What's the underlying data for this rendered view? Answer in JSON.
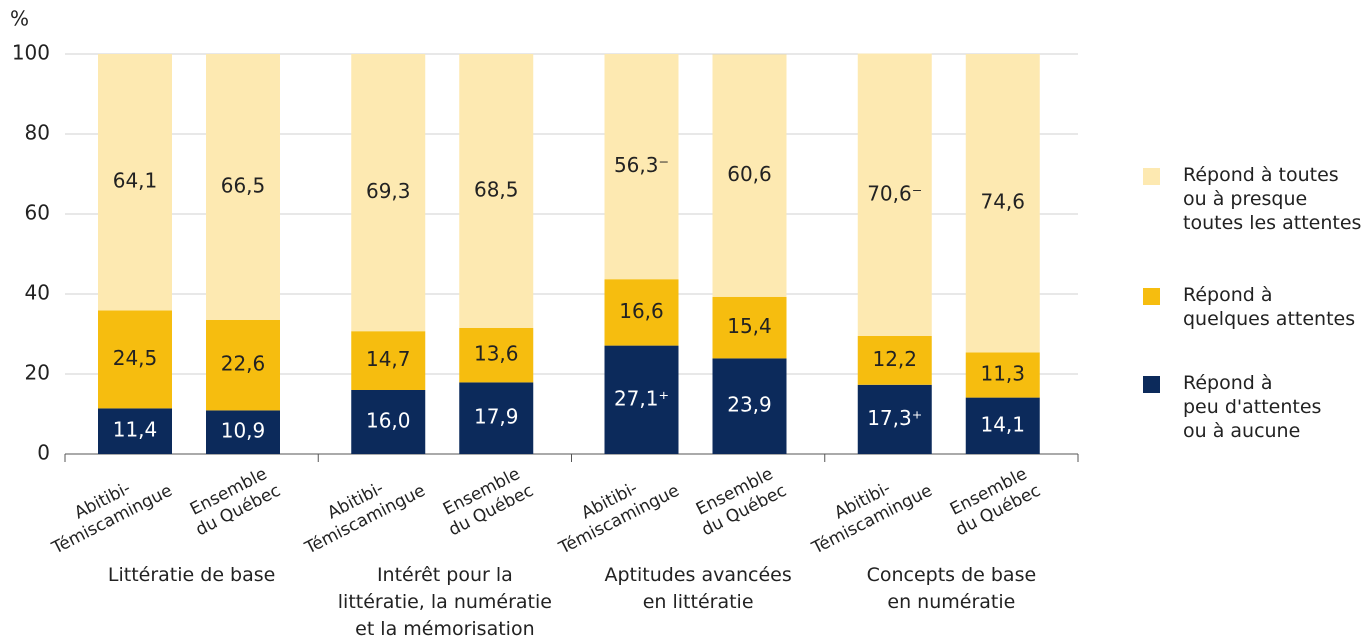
{
  "chart_data": {
    "type": "stacked_bar",
    "y_label": "%",
    "categories": [
      "Abitibi-\nTémiscamingue",
      "Ensemble\ndu Québec",
      "Abitibi-\nTémiscamingue",
      "Ensemble\ndu Québec",
      "Abitibi-\nTémiscamingue",
      "Ensemble\ndu Québec",
      "Abitibi-\nTémiscamingue",
      "Ensemble\ndu Québec"
    ],
    "groups": [
      "Littératie de base",
      "Intérêt pour la\nlittératie, la numératie\net la mémorisation",
      "Aptitudes avancées\nen littératie",
      "Concepts de base\nen numératie"
    ],
    "series": [
      {
        "name": "Répond à\npeu d'attentes\nou à aucune",
        "color": "#0c2a5b",
        "label_color": "#ffffff",
        "values": [
          11.4,
          10.9,
          16.0,
          17.9,
          27.1,
          23.9,
          17.3,
          14.1
        ],
        "value_labels": [
          "11,4",
          "10,9",
          "16,0",
          "17,9",
          "27,1⁺",
          "23,9",
          "17,3⁺",
          "14,1"
        ]
      },
      {
        "name": "Répond à\nquelques attentes",
        "color": "#f6bd0f",
        "label_color": "#222222",
        "values": [
          24.5,
          22.6,
          14.7,
          13.6,
          16.6,
          15.4,
          12.2,
          11.3
        ],
        "value_labels": [
          "24,5",
          "22,6",
          "14,7",
          "13,6",
          "16,6",
          "15,4",
          "12,2",
          "11,3"
        ]
      },
      {
        "name": "Répond à toutes\nou à presque\ntoutes les attentes",
        "color": "#fde9b1",
        "label_color": "#222222",
        "values": [
          64.1,
          66.5,
          69.3,
          68.5,
          56.3,
          60.6,
          70.6,
          74.6
        ],
        "value_labels": [
          "64,1",
          "66,5",
          "69,3",
          "68,5",
          "56,3⁻",
          "60,6",
          "70,6⁻",
          "74,6"
        ]
      }
    ],
    "ylim": [
      0,
      100
    ],
    "yticks": [
      0,
      20,
      40,
      60,
      80,
      100
    ],
    "grid": true,
    "legend": "right"
  }
}
